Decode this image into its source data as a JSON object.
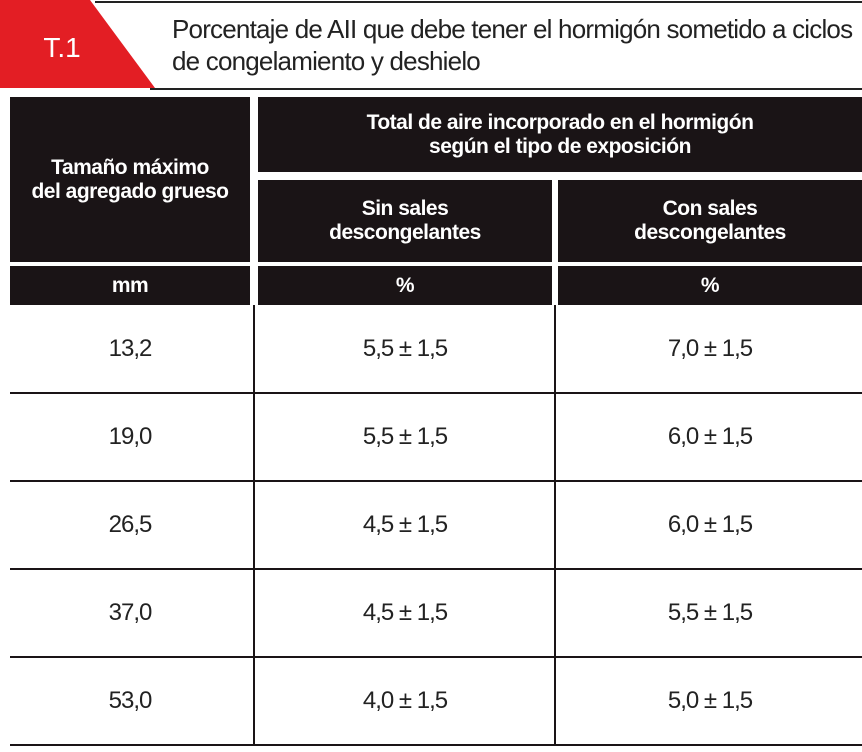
{
  "header": {
    "tag": "T.1",
    "title_lines": [
      "Porcentaje de AII que debe tener el hormigón sometido a ciclos",
      "de congelamiento y deshielo"
    ]
  },
  "table": {
    "col0_header": [
      "Tamaño máximo",
      "del agregado grueso"
    ],
    "group_header": [
      "Total de aire incorporado en el hormigón",
      "según el tipo de exposición"
    ],
    "sub_headers": [
      [
        "Sin sales",
        "descongelantes"
      ],
      [
        "Con sales",
        "descongelantes"
      ]
    ],
    "units": [
      "mm",
      "%",
      "%"
    ],
    "rows": [
      [
        "13,2",
        "5,5 ± 1,5",
        "7,0 ± 1,5"
      ],
      [
        "19,0",
        "5,5 ± 1,5",
        "6,0 ± 1,5"
      ],
      [
        "26,5",
        "4,5 ± 1,5",
        "6,0 ± 1,5"
      ],
      [
        "37,0",
        "4,5 ± 1,5",
        "5,5 ± 1,5"
      ],
      [
        "53,0",
        "4,0 ± 1,5",
        "5,0 ± 1,5"
      ]
    ]
  }
}
